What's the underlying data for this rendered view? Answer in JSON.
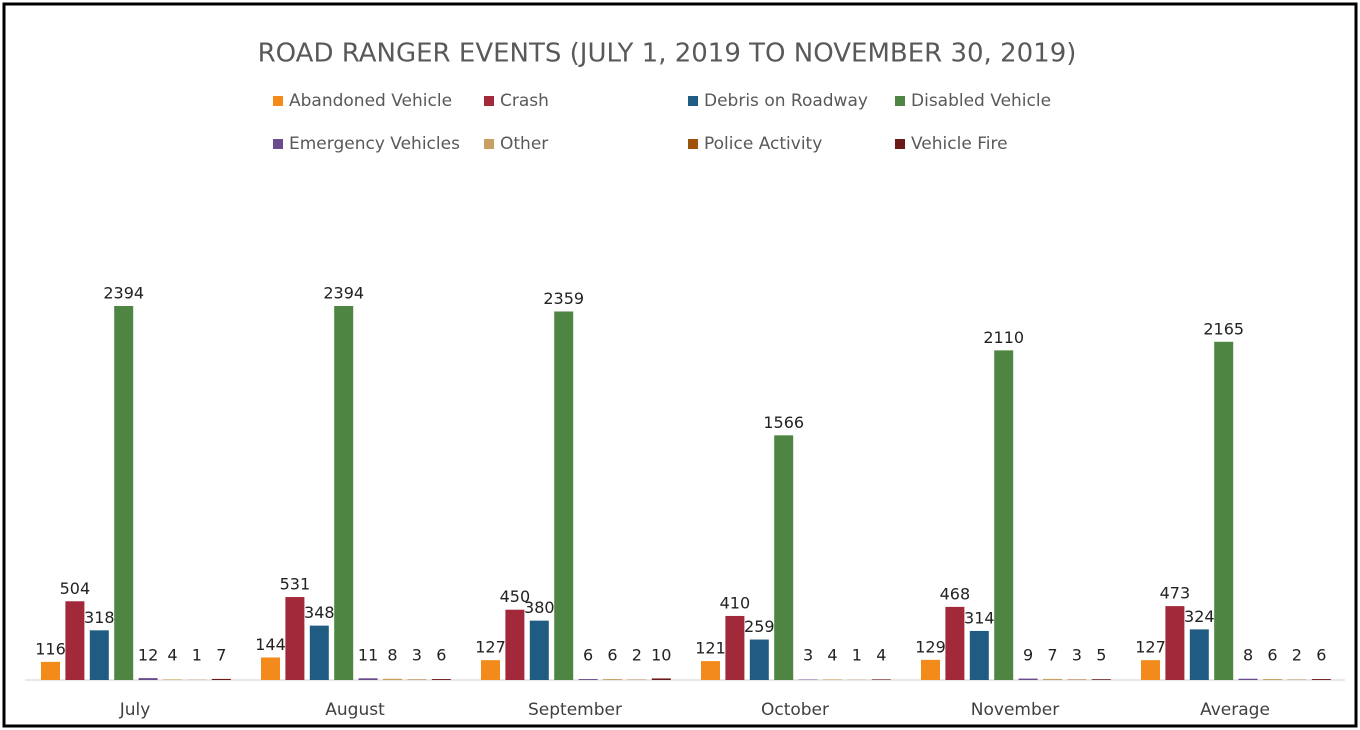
{
  "chart_data": {
    "type": "bar",
    "title": "ROAD RANGER EVENTS (JULY 1, 2019 TO NOVEMBER 30, 2019)",
    "categories": [
      "July",
      "August",
      "September",
      "October",
      "November",
      "Average"
    ],
    "series": [
      {
        "name": "Abandoned Vehicle",
        "color": "#f28a1c",
        "values": [
          116,
          144,
          127,
          121,
          129,
          127
        ]
      },
      {
        "name": "Crash",
        "color": "#a2293a",
        "values": [
          504,
          531,
          450,
          410,
          468,
          473
        ]
      },
      {
        "name": "Debris on Roadway",
        "color": "#1f5b82",
        "values": [
          318,
          348,
          380,
          259,
          314,
          324
        ]
      },
      {
        "name": "Disabled Vehicle",
        "color": "#4e8542",
        "values": [
          2394,
          2394,
          2359,
          1566,
          2110,
          2165
        ]
      },
      {
        "name": "Emergency Vehicles",
        "color": "#6a4c8c",
        "values": [
          12,
          11,
          6,
          3,
          9,
          8
        ]
      },
      {
        "name": "Other",
        "color": "#c8a060",
        "values": [
          4,
          8,
          6,
          4,
          7,
          6
        ]
      },
      {
        "name": "Police Activity",
        "color": "#a0520a",
        "values": [
          1,
          3,
          2,
          1,
          3,
          2
        ]
      },
      {
        "name": "Vehicle Fire",
        "color": "#6b1a1a",
        "values": [
          7,
          6,
          10,
          4,
          5,
          6
        ]
      }
    ]
  }
}
